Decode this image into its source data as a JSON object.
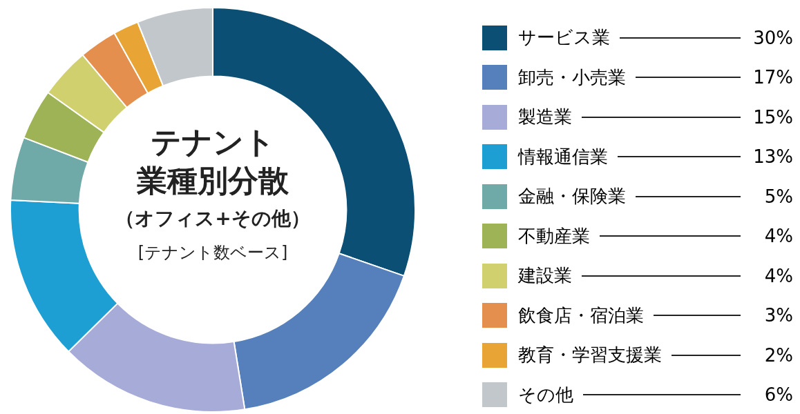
{
  "chart_data": {
    "type": "donut",
    "title": "テナント",
    "subtitle": "業種別分散",
    "annotations": [
      "（オフィス+その他）",
      "[テナント数ベース]"
    ],
    "categories": [
      "サービス業",
      "卸売・小売業",
      "製造業",
      "情報通信業",
      "金融・保険業",
      "不動産業",
      "建設業",
      "飲食店・宿泊業",
      "教育・学習支援業",
      "その他"
    ],
    "values": [
      30,
      17,
      15,
      13,
      5,
      4,
      4,
      3,
      2,
      6
    ],
    "value_labels": [
      "30%",
      "17%",
      "15%",
      "13%",
      "5%",
      "4%",
      "4%",
      "3%",
      "2%",
      "6%"
    ],
    "colors": [
      "#0b4f75",
      "#5580bb",
      "#a6abd8",
      "#1e9fd4",
      "#6fa9a8",
      "#9db356",
      "#d0d06e",
      "#e48f4d",
      "#e8a535",
      "#c2c7cb"
    ],
    "legend": "right"
  }
}
